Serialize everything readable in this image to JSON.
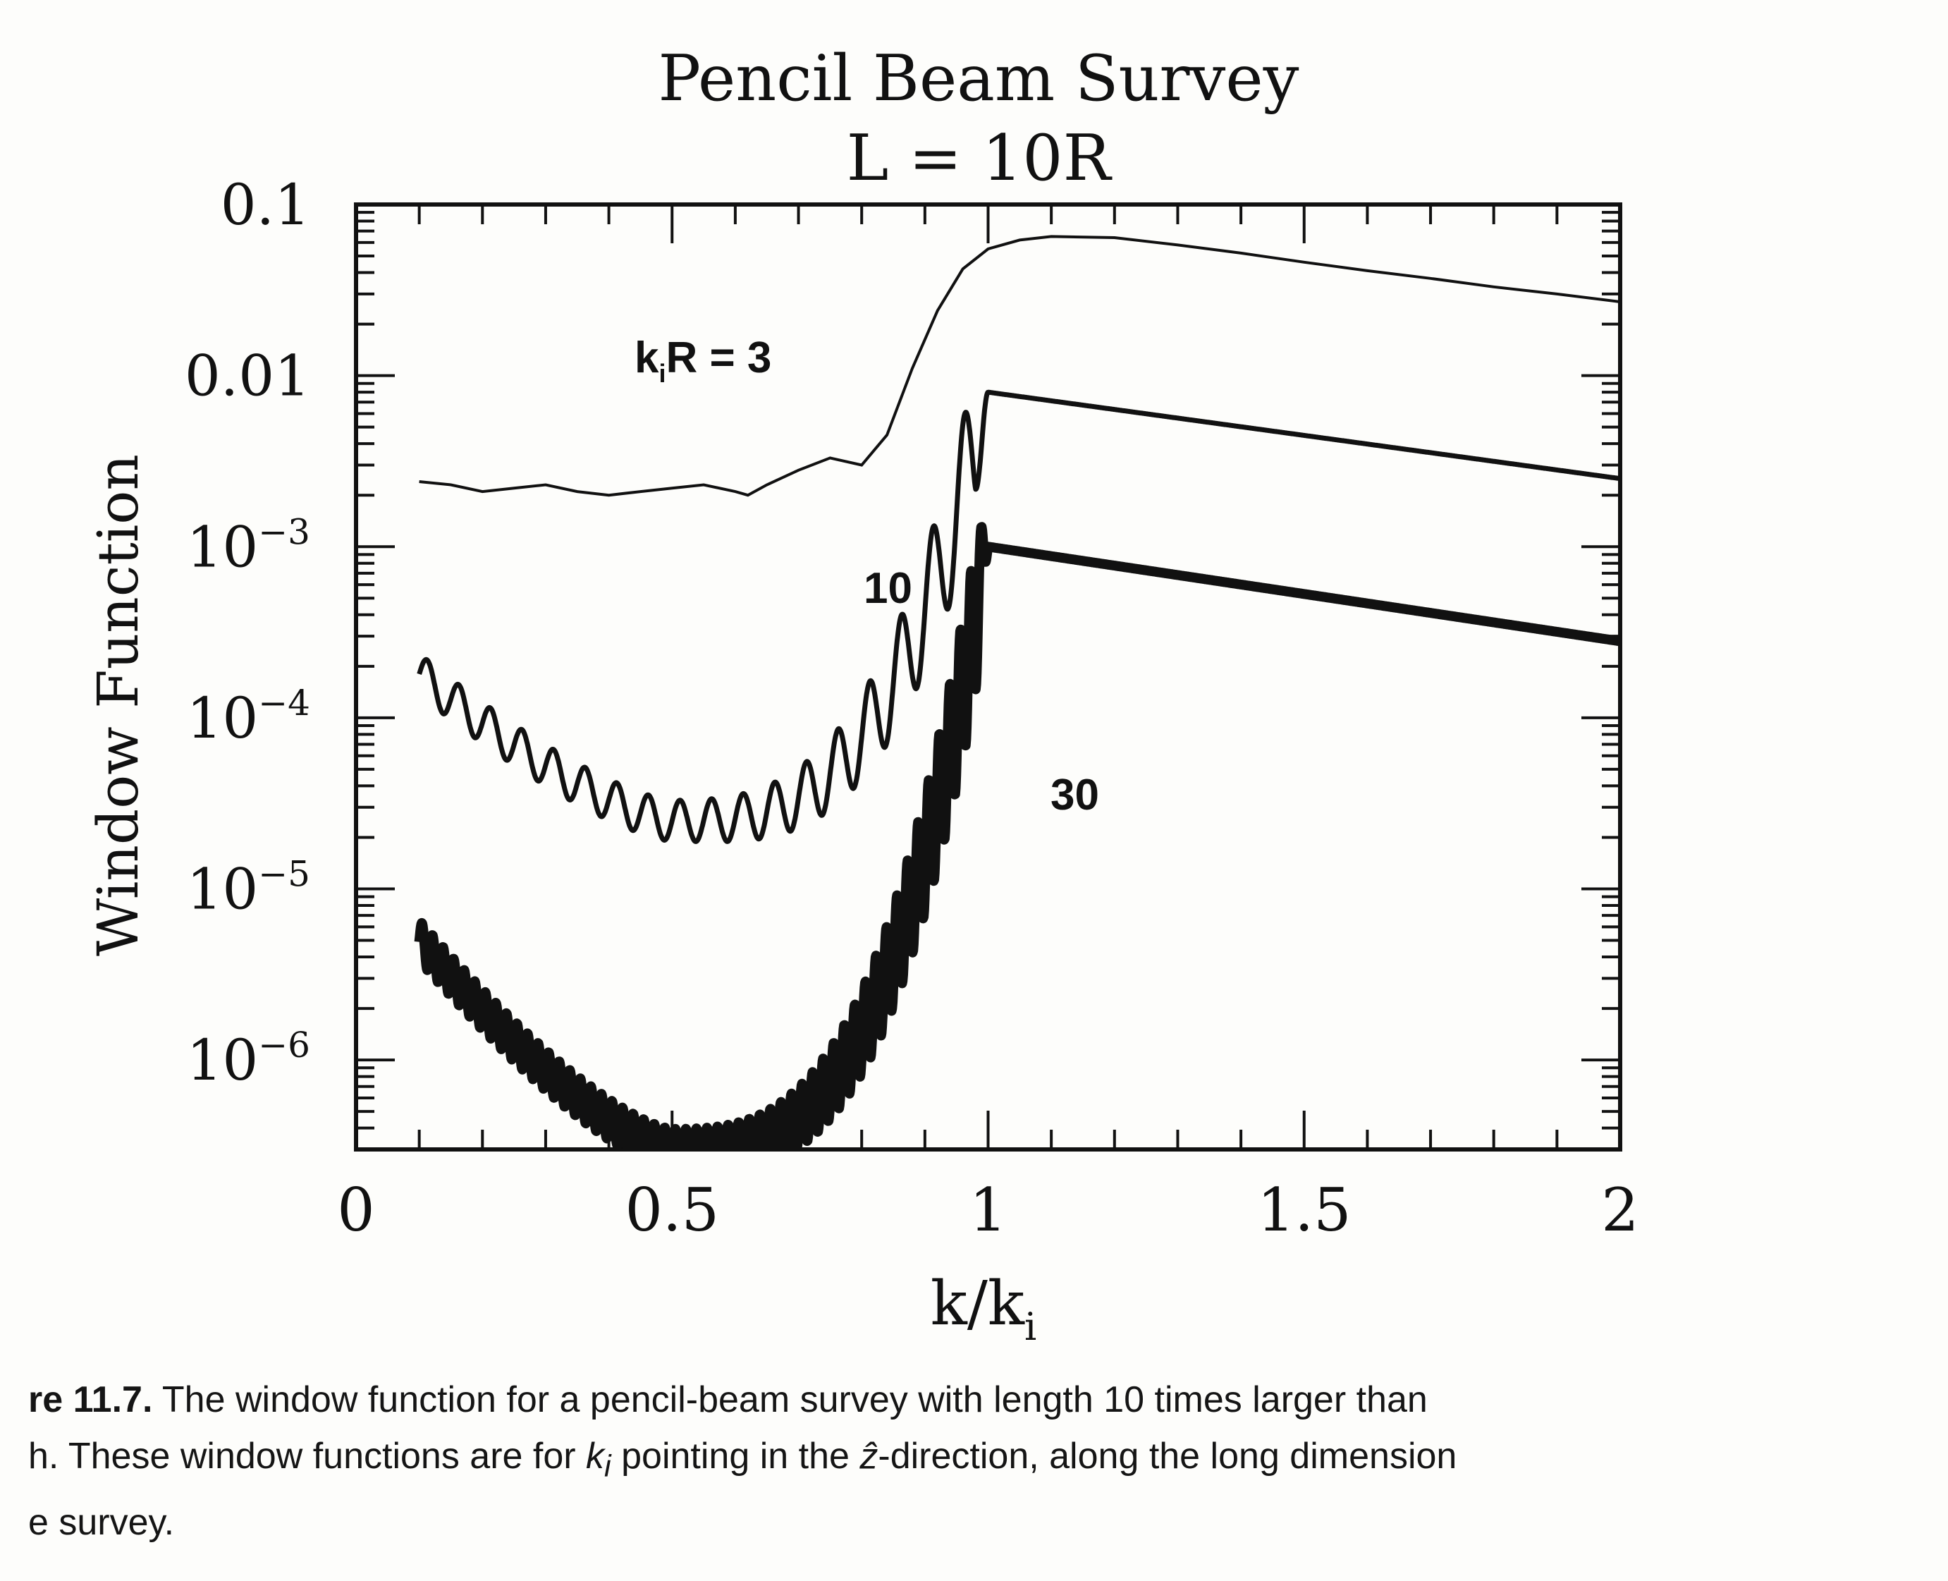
{
  "chart_data": {
    "type": "line",
    "title": "Pencil Beam Survey",
    "subtitle": "L = 10R",
    "xlabel": "k/k",
    "xlabel_sub": "i",
    "ylabel": "Window Function",
    "xlim": [
      0,
      2
    ],
    "ylim": [
      3e-07,
      0.1
    ],
    "yscale": "log",
    "x_ticks": [
      "0",
      "0.5",
      "1",
      "1.5",
      "2"
    ],
    "y_ticks": [
      {
        "base": "0.1",
        "exp": ""
      },
      {
        "base": "0.01",
        "exp": ""
      },
      {
        "base": "10",
        "exp": "−3"
      },
      {
        "base": "10",
        "exp": "−4"
      },
      {
        "base": "10",
        "exp": "−5"
      },
      {
        "base": "10",
        "exp": "−6"
      }
    ],
    "series": [
      {
        "label": "k",
        "label_sub": "i",
        "label_rest": "R = 3",
        "value": 3,
        "line_style": "thin",
        "x": [
          0.1,
          0.15,
          0.2,
          0.25,
          0.3,
          0.35,
          0.4,
          0.45,
          0.5,
          0.55,
          0.6,
          0.62,
          0.65,
          0.7,
          0.75,
          0.8,
          0.84,
          0.88,
          0.92,
          0.96,
          1.0,
          1.05,
          1.1,
          1.2,
          1.3,
          1.4,
          1.5,
          1.6,
          1.7,
          1.8,
          1.9,
          2.0
        ],
        "y": [
          0.0024,
          0.0023,
          0.0021,
          0.0022,
          0.0023,
          0.0021,
          0.002,
          0.0021,
          0.0022,
          0.0023,
          0.0021,
          0.002,
          0.0023,
          0.0028,
          0.0033,
          0.003,
          0.0045,
          0.011,
          0.024,
          0.042,
          0.055,
          0.062,
          0.065,
          0.064,
          0.058,
          0.052,
          0.046,
          0.041,
          0.037,
          0.033,
          0.03,
          0.027
        ]
      },
      {
        "label": "10",
        "value": 10,
        "line_style": "medium",
        "x_start": 0.1,
        "x_min_at": 0.5,
        "x_peak": 1.0,
        "x_end": 2.0,
        "y_start": 0.00018,
        "y_min": 2.5e-05,
        "y_peak": 0.008,
        "y_end": 0.0025,
        "oscillation_period": 0.05
      },
      {
        "label": "30",
        "value": 30,
        "line_style": "heavy",
        "x_start": 0.1,
        "x_min_at": 0.5,
        "x_peak": 1.0,
        "x_end": 2.0,
        "y_start": 5e-06,
        "y_min": 3e-07,
        "y_peak": 0.001,
        "y_end": 0.00028,
        "oscillation_period": 0.0167
      }
    ]
  },
  "caption": {
    "label": "re 11.7.",
    "line1": "The window function for a pencil-beam survey with length 10 times larger than",
    "line2a": "h. These window functions are for ",
    "line2_vec": "k",
    "line2_vec_sub": "i",
    "line2b": " pointing in the ",
    "line2_hat": "ẑ",
    "line2c": "-direction, along the long dimension",
    "line3": "e survey."
  }
}
